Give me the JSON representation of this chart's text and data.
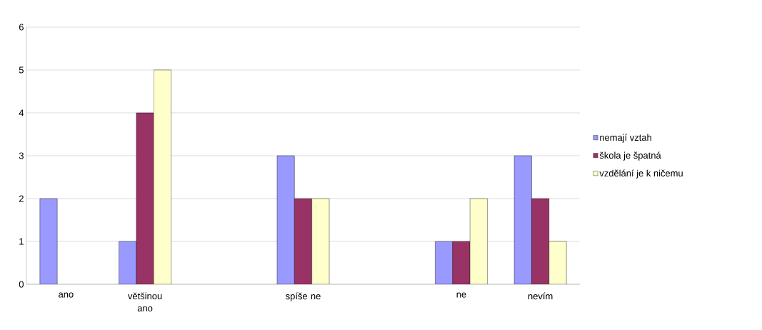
{
  "chart_data": {
    "type": "bar",
    "categories": [
      "ano",
      "většinou ano",
      null,
      "spíše ne",
      null,
      "ne",
      "nevím"
    ],
    "series": [
      {
        "name": "nemají vztah",
        "color": "#9999ff",
        "values": [
          2,
          1,
          null,
          3,
          null,
          1,
          3
        ]
      },
      {
        "name": "škola je špatná",
        "color": "#993366",
        "values": [
          null,
          4,
          null,
          2,
          null,
          1,
          2
        ]
      },
      {
        "name": "vzdělání je k ničemu",
        "color": "#ffffcc",
        "values": [
          null,
          5,
          null,
          2,
          null,
          2,
          1
        ]
      }
    ],
    "ylim": [
      0,
      6
    ],
    "yticks": [
      0,
      1,
      2,
      3,
      4,
      5,
      6
    ],
    "grid": "y",
    "legend": "right"
  }
}
